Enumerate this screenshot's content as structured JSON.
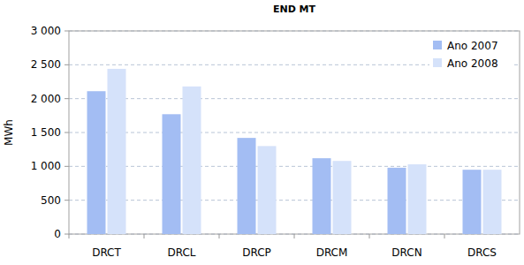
{
  "chart_data": {
    "type": "bar",
    "title": "END MT",
    "y_label": "MWh",
    "categories": [
      "DRCT",
      "DRCL",
      "DRCP",
      "DRCM",
      "DRCN",
      "DRCS"
    ],
    "series": [
      {
        "name": "Ano 2007",
        "color": "#a3bdf3",
        "values": [
          2110,
          1770,
          1420,
          1120,
          980,
          950
        ]
      },
      {
        "name": "Ano 2008",
        "color": "#d5e2fa",
        "values": [
          2440,
          2180,
          1300,
          1080,
          1030,
          950
        ]
      }
    ],
    "ylim": [
      0,
      3000
    ],
    "yticks": [
      0,
      500,
      {
        "value": 1000,
        "label": "1 000"
      },
      {
        "value": 1500,
        "label": "1 500"
      },
      {
        "value": 2000,
        "label": "2 000"
      },
      {
        "value": 2500,
        "label": "2 500"
      },
      {
        "value": 3000,
        "label": "3 000"
      }
    ],
    "grid": true,
    "legend": "top right"
  }
}
